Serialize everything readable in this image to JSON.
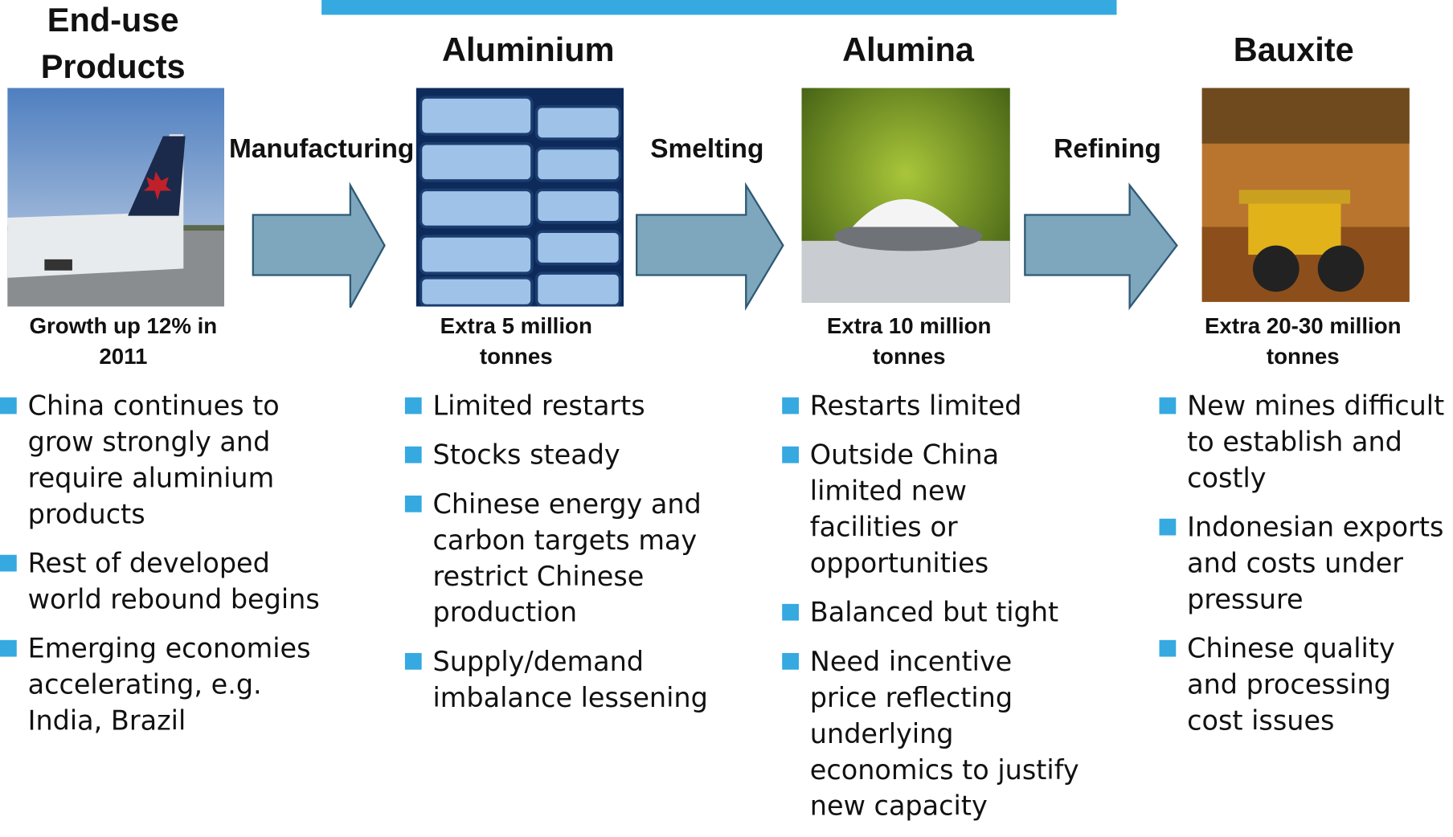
{
  "columns": [
    {
      "title": "End-use Products",
      "caption": "Growth up 12% in 2011",
      "bullets": [
        "China continues to grow strongly and require aluminium products",
        "Rest of developed world rebound begins",
        "Emerging economies accelerating, e.g. India, Brazil"
      ]
    },
    {
      "title": "Aluminium",
      "caption": "Extra 5 million tonnes",
      "bullets": [
        "Limited restarts",
        "Stocks steady",
        "Chinese energy and carbon targets may restrict Chinese production",
        "Supply/demand imbalance lessening"
      ]
    },
    {
      "title": "Alumina",
      "caption": "Extra 10 million tonnes",
      "bullets": [
        "Restarts limited",
        "Outside China limited new facilities or opportunities",
        "Balanced but tight",
        "Need incentive price reflecting underlying economics to justify new capacity"
      ]
    },
    {
      "title": "Bauxite",
      "caption": "Extra 20-30 million tonnes",
      "bullets": [
        "New mines difficult to establish and costly",
        "Indonesian exports and costs under pressure",
        "Chinese quality and processing cost issues"
      ]
    }
  ],
  "steps": [
    "Manufacturing",
    "Smelting",
    "Refining"
  ]
}
